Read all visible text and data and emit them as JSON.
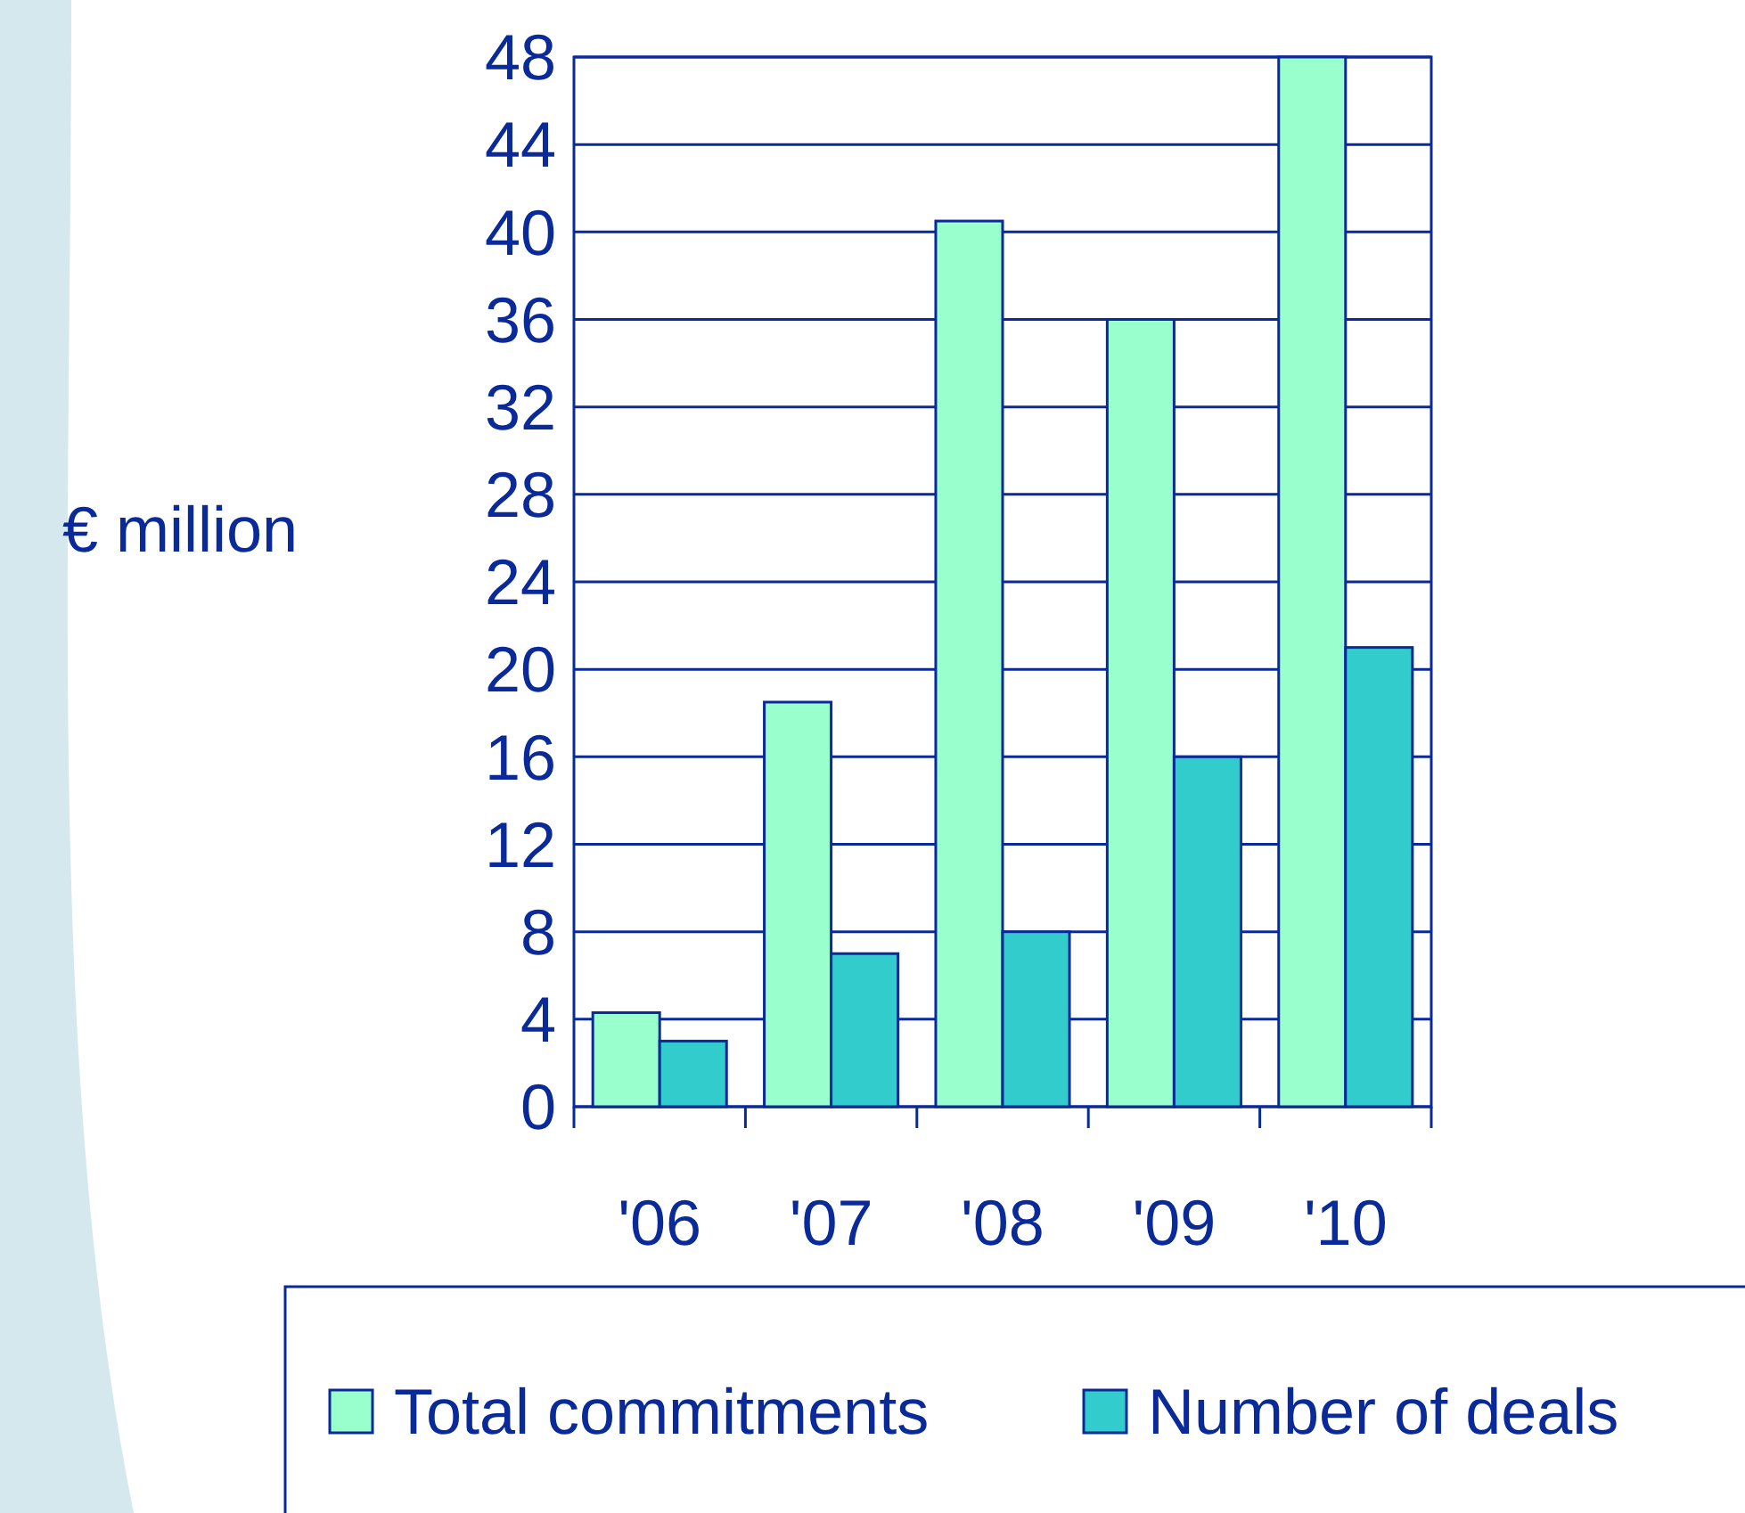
{
  "chart_data": {
    "type": "bar",
    "ylabel": "€ million",
    "categories": [
      "'06",
      "'07",
      "'08",
      "'09",
      "'10"
    ],
    "series": [
      {
        "name": "Total commitments",
        "color": "#99ffcc",
        "values": [
          4.3,
          18.5,
          40.5,
          36,
          48
        ]
      },
      {
        "name": "Number of deals",
        "color": "#33cccc",
        "values": [
          3,
          7,
          8,
          16,
          21
        ]
      }
    ],
    "ylim": [
      0,
      48
    ],
    "yticks": [
      0,
      4,
      8,
      12,
      16,
      20,
      24,
      28,
      32,
      36,
      40,
      44,
      48
    ],
    "grid": "y",
    "legend": "bottom"
  }
}
